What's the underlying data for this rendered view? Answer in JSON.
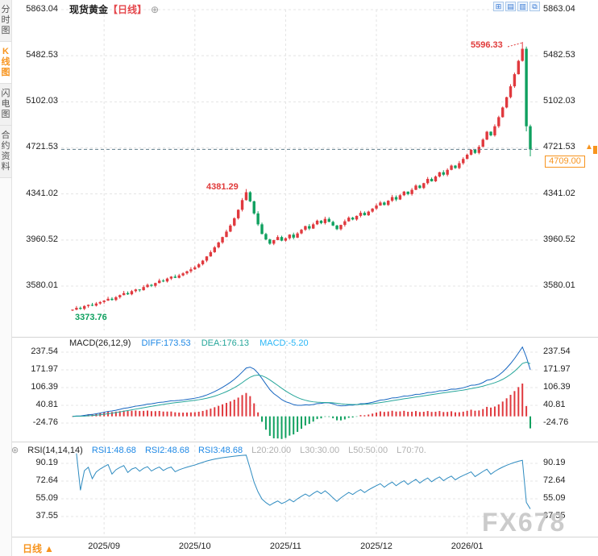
{
  "header": {
    "symbol": "现货黄金",
    "period_tag": "【日线】",
    "add_icon": "⊕"
  },
  "toolbar": {
    "icons": [
      {
        "name": "grid-layout",
        "glyph": "⊞"
      },
      {
        "name": "indicator-panels",
        "glyph": "▤"
      },
      {
        "name": "chart-style",
        "glyph": "▥"
      },
      {
        "name": "fullscreen",
        "glyph": "⧉"
      }
    ]
  },
  "sidebar": {
    "tabs": [
      {
        "name": "tab-time-chart",
        "label": "分时图",
        "active": false
      },
      {
        "name": "tab-kline-chart",
        "label": "K线图",
        "active": true
      },
      {
        "name": "tab-flash-chart",
        "label": "闪电图",
        "active": false
      },
      {
        "name": "tab-contract-info",
        "label": "合约资料",
        "active": false
      }
    ]
  },
  "annotations": {
    "last_price_display": "4709.00",
    "arrow_up": "▲"
  },
  "macd_legend": {
    "title": "MACD(26,12,9)",
    "diff": "DIFF:173.53",
    "dea": "DEA:176.13",
    "macd": "MACD:-5.20"
  },
  "rsi_legend": {
    "icon_glyph": "⊛",
    "title": "RSI(14,14,14)",
    "rsi1": "RSI1:48.68",
    "rsi2": "RSI2:48.68",
    "rsi3": "RSI3:48.68",
    "l20": "L20:20.00",
    "l30": "L30:30.00",
    "l50": "L50:50.00",
    "l70": "L70:70."
  },
  "footer": {
    "period": "日线",
    "arrow": "▲"
  },
  "watermark": "FX678",
  "colors": {
    "up": "#e0393e",
    "down": "#0fa05f",
    "diff_line": "#1565c0",
    "dea_line": "#26a69a",
    "rsi_line": "#2e8bc0",
    "accent": "#f7941e",
    "grid": "#e4e4e4",
    "current_line": "#607d8b",
    "annotation_red": "#e03b3b",
    "annotation_green": "#0fa05f"
  },
  "chart_data": {
    "type": "candlestick",
    "title": "现货黄金 日线 (Spot Gold, Daily)",
    "panels": [
      "price",
      "MACD",
      "RSI"
    ],
    "price_ticks": [
      5863.04,
      5482.53,
      5102.03,
      4721.53,
      4341.02,
      3960.52,
      3580.01
    ],
    "macd_ticks": [
      237.54,
      171.97,
      106.39,
      40.81,
      -24.76
    ],
    "rsi_ticks": [
      90.19,
      72.64,
      55.09,
      37.55
    ],
    "month_starts": [
      {
        "label": "2025/09",
        "index": 8
      },
      {
        "label": "2025/10",
        "index": 31
      },
      {
        "label": "2025/11",
        "index": 54
      },
      {
        "label": "2025/12",
        "index": 77
      },
      {
        "label": "2026/01",
        "index": 100
      }
    ],
    "first_open": 3380,
    "closes": [
      3385,
      3400,
      3392,
      3415,
      3425,
      3418,
      3436,
      3448,
      3460,
      3475,
      3465,
      3488,
      3505,
      3522,
      3512,
      3538,
      3552,
      3546,
      3572,
      3590,
      3582,
      3605,
      3625,
      3618,
      3642,
      3658,
      3648,
      3668,
      3685,
      3702,
      3718,
      3735,
      3760,
      3790,
      3825,
      3860,
      3900,
      3940,
      3985,
      4030,
      4080,
      4140,
      4210,
      4290,
      4355,
      4280,
      4180,
      4090,
      4010,
      3965,
      3930,
      3960,
      3985,
      3955,
      3975,
      4005,
      3980,
      4015,
      4045,
      4075,
      4055,
      4090,
      4120,
      4100,
      4135,
      4110,
      4080,
      4050,
      4085,
      4115,
      4145,
      4130,
      4160,
      4185,
      4165,
      4195,
      4220,
      4245,
      4270,
      4250,
      4285,
      4315,
      4295,
      4330,
      4360,
      4340,
      4375,
      4410,
      4390,
      4430,
      4465,
      4445,
      4485,
      4520,
      4500,
      4540,
      4575,
      4555,
      4595,
      4630,
      4665,
      4705,
      4680,
      4730,
      4790,
      4855,
      4825,
      4900,
      4975,
      5055,
      5140,
      5230,
      5330,
      5440,
      5540,
      4900,
      4709
    ],
    "peak": {
      "index": 114,
      "price": 5596.33
    },
    "local_peak": {
      "index": 44,
      "price": 4381.29
    },
    "low": {
      "index": 0,
      "price": 3373.76
    },
    "extra_wicks": {
      "115": {
        "low": 4858
      },
      "116": {
        "low": 4652
      }
    },
    "last_price": 4709.0,
    "indicators": {
      "macd": {
        "params": [
          26,
          12,
          9
        ],
        "diff": 173.53,
        "dea": 176.13,
        "macd": -5.2
      },
      "rsi": {
        "params": [
          14,
          14,
          14
        ],
        "rsi1": 48.68,
        "rsi2": 48.68,
        "rsi3": 48.68,
        "levels": [
          20,
          30,
          50,
          70
        ]
      }
    }
  }
}
